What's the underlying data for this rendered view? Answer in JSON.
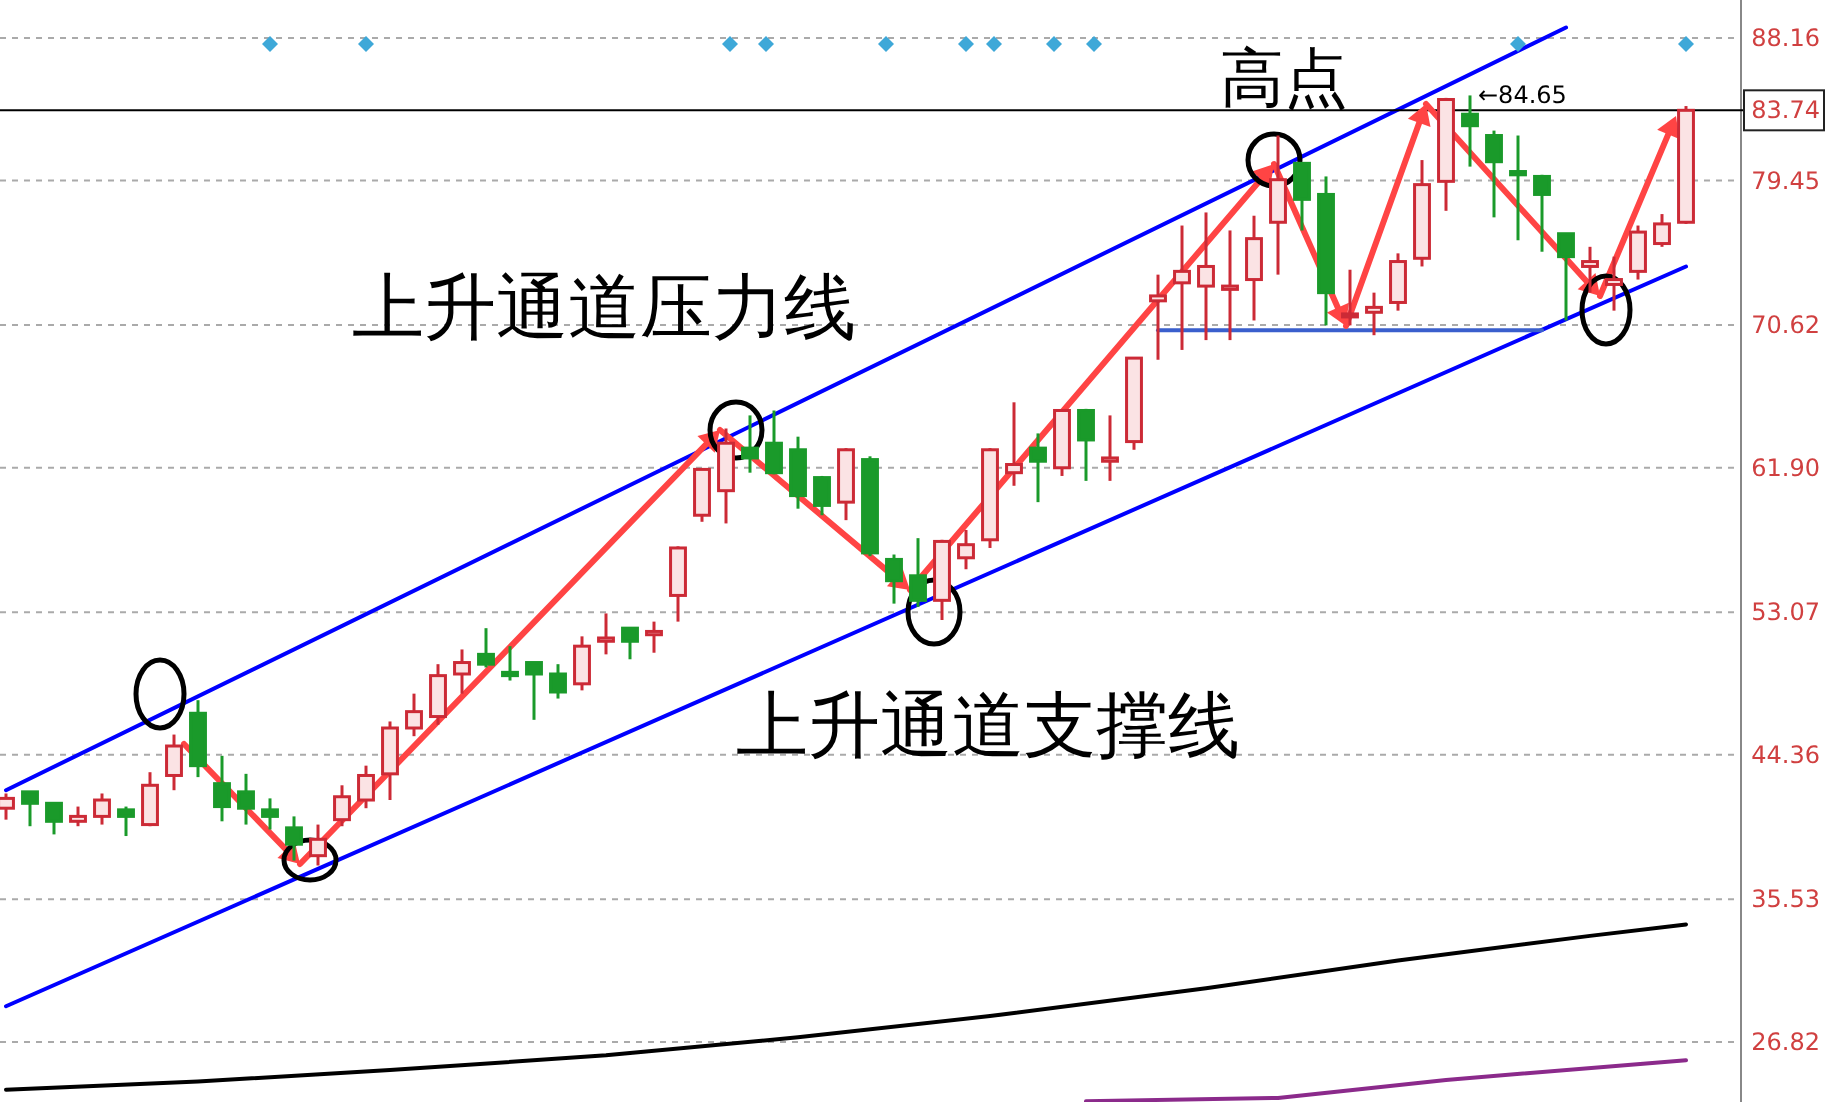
{
  "chart_data": {
    "type": "candlestick",
    "categories": [
      null,
      null,
      null,
      null,
      null,
      null,
      null,
      null,
      null,
      null,
      null,
      null,
      null,
      null,
      null,
      null,
      null,
      null,
      null,
      null,
      null,
      null,
      null,
      null,
      null,
      null,
      null,
      null,
      null,
      null,
      null,
      null,
      null,
      null,
      null,
      null,
      null,
      null,
      null,
      null,
      null,
      null,
      null,
      null,
      null,
      null,
      null,
      null,
      null,
      null,
      null,
      null,
      null,
      null,
      null,
      null,
      null,
      null,
      null,
      null,
      null,
      null,
      null,
      null,
      null,
      null,
      null,
      null,
      null,
      null,
      null
    ],
    "ohlc": [
      [
        41.1,
        42.0,
        40.4,
        41.7
      ],
      [
        42.1,
        42.1,
        40.0,
        41.4
      ],
      [
        41.4,
        41.4,
        39.5,
        40.3
      ],
      [
        40.3,
        41.2,
        40.0,
        40.6
      ],
      [
        40.6,
        42.0,
        40.1,
        41.6
      ],
      [
        41.0,
        41.2,
        39.4,
        40.6
      ],
      [
        40.1,
        43.3,
        40.0,
        42.5
      ],
      [
        43.1,
        45.6,
        42.2,
        44.9
      ],
      [
        46.9,
        47.7,
        43.0,
        43.7
      ],
      [
        42.6,
        44.3,
        40.3,
        41.2
      ],
      [
        42.1,
        43.2,
        40.1,
        41.1
      ],
      [
        41.0,
        41.7,
        39.8,
        40.6
      ],
      [
        39.9,
        40.6,
        37.9,
        38.9
      ],
      [
        38.2,
        40.1,
        37.6,
        39.2
      ],
      [
        40.4,
        42.5,
        40.0,
        41.8
      ],
      [
        41.6,
        43.7,
        41.1,
        43.1
      ],
      [
        43.2,
        46.4,
        41.6,
        46.0
      ],
      [
        46.0,
        48.1,
        45.5,
        47.0
      ],
      [
        46.7,
        49.9,
        46.2,
        49.2
      ],
      [
        49.3,
        50.8,
        48.1,
        50.0
      ],
      [
        50.5,
        52.1,
        49.7,
        49.9
      ],
      [
        49.4,
        51.0,
        48.9,
        49.2
      ],
      [
        50.0,
        50.0,
        46.5,
        49.3
      ],
      [
        49.3,
        49.9,
        47.8,
        48.2
      ],
      [
        48.7,
        51.6,
        48.3,
        51.0
      ],
      [
        51.3,
        53.0,
        50.5,
        51.5
      ],
      [
        52.1,
        52.1,
        50.2,
        51.3
      ],
      [
        51.7,
        52.5,
        50.6,
        51.9
      ],
      [
        54.1,
        57.1,
        52.5,
        57.0
      ],
      [
        59.0,
        61.8,
        58.6,
        61.8
      ],
      [
        60.5,
        64.3,
        58.5,
        63.4
      ],
      [
        63.1,
        65.1,
        61.6,
        62.5
      ],
      [
        63.4,
        65.4,
        61.5,
        61.6
      ],
      [
        63.0,
        63.8,
        59.4,
        60.2
      ],
      [
        61.3,
        61.4,
        59.0,
        59.6
      ],
      [
        59.8,
        63.1,
        58.7,
        63.0
      ],
      [
        62.4,
        62.6,
        56.5,
        56.7
      ],
      [
        56.3,
        56.6,
        53.6,
        55.0
      ],
      [
        55.3,
        57.6,
        53.4,
        53.8
      ],
      [
        53.8,
        57.5,
        52.6,
        57.4
      ],
      [
        56.4,
        58.1,
        55.7,
        57.2
      ],
      [
        57.5,
        63.1,
        57.0,
        63.0
      ],
      [
        61.6,
        65.9,
        60.8,
        62.1
      ],
      [
        63.1,
        64.0,
        59.8,
        62.3
      ],
      [
        61.9,
        65.4,
        61.4,
        65.4
      ],
      [
        65.4,
        65.5,
        61.1,
        63.6
      ],
      [
        62.3,
        65.1,
        61.1,
        62.5
      ],
      [
        63.5,
        68.6,
        63.0,
        68.6
      ],
      [
        72.1,
        73.7,
        68.5,
        72.4
      ],
      [
        73.2,
        76.7,
        69.1,
        73.9
      ],
      [
        73.0,
        77.5,
        69.7,
        74.2
      ],
      [
        72.8,
        76.4,
        69.7,
        73.0
      ],
      [
        73.4,
        77.3,
        70.9,
        75.9
      ],
      [
        76.9,
        82.2,
        73.7,
        79.5
      ],
      [
        80.5,
        80.5,
        76.4,
        78.3
      ],
      [
        78.6,
        79.7,
        70.6,
        72.6
      ],
      [
        71.2,
        74.0,
        70.6,
        71.3
      ],
      [
        71.4,
        72.6,
        70.0,
        71.7
      ],
      [
        72.0,
        75.0,
        71.5,
        74.5
      ],
      [
        74.7,
        80.7,
        74.2,
        79.2
      ],
      [
        79.4,
        84.5,
        77.6,
        84.4
      ],
      [
        83.5,
        84.65,
        80.3,
        82.8
      ],
      [
        82.2,
        82.5,
        77.2,
        80.6
      ],
      [
        80.0,
        82.2,
        75.8,
        79.8
      ],
      [
        79.7,
        79.8,
        75.1,
        78.6
      ],
      [
        76.2,
        76.2,
        70.9,
        74.8
      ],
      [
        74.2,
        75.4,
        72.6,
        74.5
      ],
      [
        73.1,
        74.8,
        71.5,
        73.4
      ],
      [
        73.9,
        76.7,
        73.4,
        76.3
      ],
      [
        75.6,
        77.4,
        75.4,
        76.8
      ],
      [
        76.9,
        84.0,
        76.8,
        83.74
      ]
    ],
    "series": [
      {
        "type": "line",
        "color": "#0000ff",
        "values": [
          42.2,
          null,
          null,
          null,
          null,
          null,
          null,
          null,
          null,
          null,
          null,
          null,
          null,
          null,
          null,
          null,
          null,
          null,
          null,
          null,
          null,
          null,
          null,
          null,
          null,
          null,
          null,
          null,
          null,
          null,
          null,
          null,
          null,
          null,
          null,
          null,
          null,
          null,
          null,
          null,
          null,
          null,
          null,
          null,
          null,
          null,
          null,
          null,
          null,
          null,
          null,
          null,
          null,
          null,
          null,
          null,
          null,
          null,
          null,
          null,
          null,
          null,
          null,
          null,
          null,
          88.8,
          null,
          null,
          null,
          null,
          null
        ]
      },
      {
        "type": "line",
        "color": "#0000ff",
        "values": [
          29.0,
          null,
          null,
          null,
          null,
          null,
          null,
          null,
          null,
          null,
          null,
          null,
          null,
          null,
          null,
          null,
          null,
          null,
          null,
          null,
          null,
          null,
          null,
          null,
          null,
          null,
          null,
          null,
          null,
          null,
          null,
          null,
          null,
          null,
          null,
          null,
          null,
          null,
          null,
          null,
          null,
          null,
          null,
          null,
          null,
          null,
          null,
          null,
          null,
          null,
          null,
          null,
          null,
          null,
          null,
          null,
          null,
          null,
          null,
          null,
          null,
          null,
          null,
          null,
          null,
          null,
          null,
          null,
          null,
          null,
          74.2
        ]
      },
      {
        "type": "line",
        "color": "#3a5fcd",
        "values": [
          null,
          null,
          null,
          null,
          null,
          null,
          null,
          null,
          null,
          null,
          null,
          null,
          null,
          null,
          null,
          null,
          null,
          null,
          null,
          null,
          null,
          null,
          null,
          null,
          null,
          null,
          null,
          null,
          null,
          null,
          null,
          null,
          null,
          null,
          null,
          null,
          null,
          null,
          null,
          null,
          null,
          null,
          null,
          null,
          null,
          null,
          null,
          null,
          70.3,
          null,
          null,
          null,
          null,
          null,
          null,
          null,
          null,
          null,
          null,
          null,
          null,
          null,
          null,
          null,
          70.3,
          null,
          null,
          null,
          null,
          null,
          null
        ]
      },
      {
        "type": "line",
        "color": "#000000",
        "values": [
          23.9,
          null,
          null,
          null,
          null,
          null,
          null,
          null,
          24.4,
          null,
          null,
          null,
          null,
          null,
          null,
          null,
          25.1,
          null,
          null,
          null,
          null,
          null,
          null,
          null,
          null,
          26.0,
          null,
          null,
          null,
          null,
          null,
          null,
          null,
          27.1,
          null,
          null,
          null,
          null,
          null,
          null,
          null,
          28.4,
          null,
          null,
          null,
          null,
          null,
          null,
          null,
          null,
          30.1,
          null,
          null,
          null,
          null,
          null,
          null,
          null,
          31.8,
          null,
          null,
          null,
          null,
          null,
          null,
          null,
          33.3,
          null,
          null,
          null,
          34.0
        ]
      },
      {
        "type": "line",
        "color": "#8b2a8b",
        "values": [
          null,
          null,
          null,
          null,
          null,
          null,
          null,
          null,
          null,
          null,
          null,
          null,
          null,
          null,
          null,
          null,
          null,
          null,
          null,
          null,
          null,
          null,
          null,
          null,
          null,
          null,
          null,
          null,
          null,
          null,
          null,
          null,
          null,
          null,
          null,
          null,
          null,
          null,
          null,
          null,
          null,
          null,
          null,
          null,
          null,
          23.2,
          null,
          null,
          null,
          null,
          null,
          null,
          null,
          23.4,
          null,
          null,
          null,
          null,
          null,
          null,
          24.5,
          null,
          null,
          null,
          null,
          null,
          null,
          null,
          null,
          null,
          25.7
        ]
      }
    ],
    "ylim": [
      23.15,
      90.48
    ],
    "yticks": [
      88.16,
      79.45,
      {
        "value": 70.62,
        "label": "70.62"
      },
      {
        "value": 61.9,
        "label": "61.90"
      },
      53.07,
      44.36,
      35.53,
      26.82
    ],
    "tick_labels": "y",
    "grid": "y",
    "ref_lines": [
      {
        "axis": "y",
        "value": 83.74,
        "label": "83.74",
        "color": "#000000"
      }
    ],
    "annotations": [
      "高点",
      "上升通道压力线",
      "上升通道支撑线",
      "←84.65"
    ]
  }
}
